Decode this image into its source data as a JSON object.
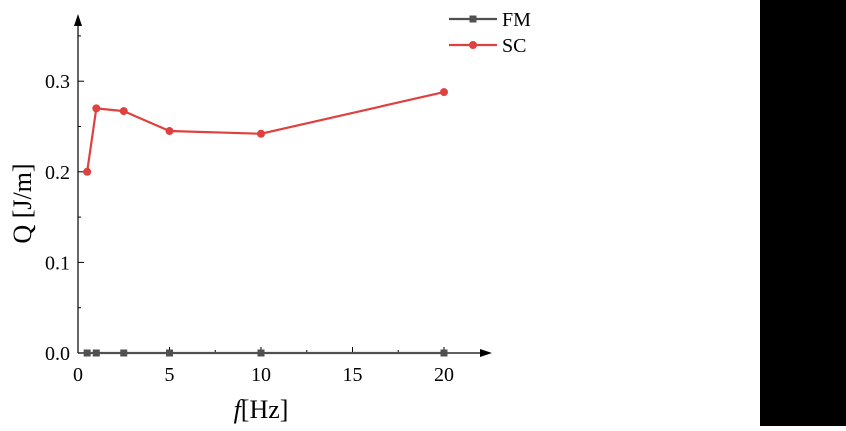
{
  "chart_data": {
    "type": "line",
    "xlabel_italic": "f",
    "xlabel_rest": "[Hz]",
    "ylabel": "Q [J/m]",
    "xlim": [
      0,
      22.5
    ],
    "ylim": [
      0,
      0.36
    ],
    "x_ticks": [
      "0",
      "5",
      "10",
      "15",
      "20"
    ],
    "y_ticks": [
      "0.0",
      "0.1",
      "0.2",
      "0.3"
    ],
    "x_tick_values": [
      0,
      5,
      10,
      15,
      20
    ],
    "y_tick_values": [
      0,
      0.1,
      0.2,
      0.3
    ],
    "legend_position": "top-right",
    "series": [
      {
        "name": "FM",
        "marker": "square",
        "color": "#505050",
        "x": [
          0.5,
          1,
          2.5,
          5,
          10,
          20
        ],
        "y": [
          0,
          0,
          0,
          0,
          0,
          0
        ]
      },
      {
        "name": "SC",
        "marker": "circle",
        "color": "#e04040",
        "x": [
          0.5,
          1,
          2.5,
          5,
          10,
          20
        ],
        "y": [
          0.2,
          0.27,
          0.267,
          0.245,
          0.242,
          0.288
        ]
      }
    ]
  }
}
